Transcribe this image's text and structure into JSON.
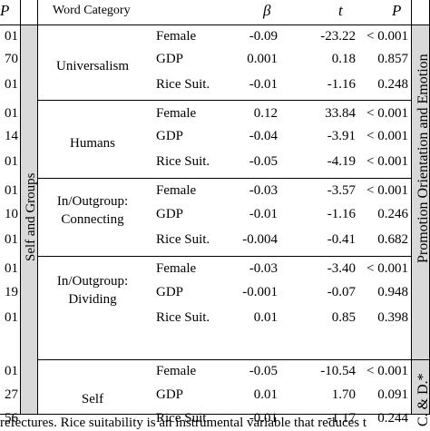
{
  "header": {
    "left_p": "P",
    "word_category": "Word Category",
    "beta": "β",
    "t": "t",
    "p": "P"
  },
  "left_partial_column": [
    "01",
    "70",
    "01",
    "01",
    "14",
    "01",
    "01",
    "10",
    "01",
    "01",
    "19",
    "01",
    "01",
    "27",
    "56"
  ],
  "side_labels": {
    "self_and_groups": "Self and Groups",
    "promotion": "Promotion Orientation and Emotion",
    "cd": "C. & D.*"
  },
  "groups": [
    {
      "category": "Universalism",
      "rows": [
        {
          "var": "Female",
          "beta": "-0.09",
          "t": "-23.22",
          "p": "< 0.001"
        },
        {
          "var": "GDP",
          "beta": "0.001",
          "t": "0.18",
          "p": "0.857"
        },
        {
          "var": "Rice Suit.",
          "beta": "-0.01",
          "t": "-1.16",
          "p": "0.248"
        }
      ]
    },
    {
      "category": "Humans",
      "rows": [
        {
          "var": "Female",
          "beta": "0.12",
          "t": "33.84",
          "p": "< 0.001"
        },
        {
          "var": "GDP",
          "beta": "-0.04",
          "t": "-3.91",
          "p": "< 0.001"
        },
        {
          "var": "Rice Suit.",
          "beta": "-0.05",
          "t": "-4.19",
          "p": "< 0.001"
        }
      ]
    },
    {
      "category": "In/Outgroup:\nConnecting",
      "category_lines": [
        "In/Outgroup:",
        "Connecting"
      ],
      "rows": [
        {
          "var": "Female",
          "beta": "-0.03",
          "t": "-3.57",
          "p": "< 0.001"
        },
        {
          "var": "GDP",
          "beta": "-0.01",
          "t": "-1.16",
          "p": "0.246"
        },
        {
          "var": "Rice Suit.",
          "beta": "-0.004",
          "t": "-0.41",
          "p": "0.682"
        }
      ]
    },
    {
      "category": "In/Outgroup:\nDividing",
      "category_lines": [
        "In/Outgroup:",
        "Dividing"
      ],
      "rows": [
        {
          "var": "Female",
          "beta": "-0.03",
          "t": "-3.40",
          "p": "< 0.001"
        },
        {
          "var": "GDP",
          "beta": "-0.001",
          "t": "-0.07",
          "p": "0.948"
        },
        {
          "var": "Rice Suit.",
          "beta": "0.01",
          "t": "0.85",
          "p": "0.398"
        }
      ]
    },
    {
      "category": "Self",
      "rows": [
        {
          "var": "Female",
          "beta": "-0.05",
          "t": "-10.54",
          "p": "< 0.001"
        },
        {
          "var": "GDP",
          "beta": "0.01",
          "t": "1.70",
          "p": "0.091"
        },
        {
          "var": "Rice Suit.",
          "beta": "-0.01",
          "t": "-1.17",
          "p": "0.244"
        }
      ]
    }
  ],
  "footnote": "refectures. Rice suitability is an instrumental variable that reduces t"
}
